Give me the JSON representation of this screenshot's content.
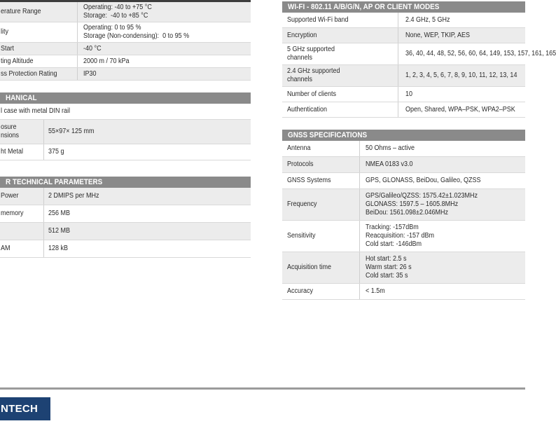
{
  "footer": {
    "logo_text": "NTECH"
  },
  "colors": {
    "logo_bg": "#1d4273",
    "header_bar": "#8a8a8a",
    "row_alt": "#ececec",
    "rule": "#9b9b9b"
  },
  "tables": {
    "environmental": {
      "header": "",
      "rows": [
        {
          "label": "erature Range",
          "value": "Operating: -40 to +75 °C\nStorage:  -40 to +85 °C",
          "shade": "gray"
        },
        {
          "label": "lity",
          "value": "Operating: 0 to 95 %\nStorage (Non-condensing):  0 to 95 %",
          "shade": "white"
        },
        {
          "label": "Start",
          "value": "-40 °C",
          "shade": "gray"
        },
        {
          "label": "ting Altitude",
          "value": "2000 m / 70 kPa",
          "shade": "white"
        },
        {
          "label": "ss Protection Rating",
          "value": "IP30",
          "shade": "gray"
        }
      ]
    },
    "mechanical": {
      "header": "HANICAL",
      "rows": [
        {
          "label": "",
          "value": "l case with metal DIN rail",
          "shade": "white",
          "full": true
        },
        {
          "label": "osure\nnsions",
          "value": "55×97× 125 mm",
          "shade": "gray"
        },
        {
          "label": "ht Metal",
          "value": "375 g",
          "shade": "white"
        }
      ]
    },
    "other_technical": {
      "header": "R TECHNICAL PARAMETERS",
      "rows": [
        {
          "label": "Power",
          "value": "2 DMIPS per MHz",
          "shade": "gray"
        },
        {
          "label": "memory",
          "value": "256 MB",
          "shade": "white"
        },
        {
          "label": "",
          "value": "512 MB",
          "shade": "gray"
        },
        {
          "label": "AM",
          "value": "128 kB",
          "shade": "white"
        }
      ]
    },
    "wifi": {
      "header": "WI-FI - 802.11 A/B/G/N, AP OR CLIENT MODES",
      "rows": [
        {
          "label": "Supported Wi-Fi band",
          "value": "2.4 GHz, 5 GHz",
          "shade": "white"
        },
        {
          "label": "Encryption",
          "value": "None, WEP, TKIP, AES",
          "shade": "gray"
        },
        {
          "label": "5 GHz supported\nchannels",
          "value": "36, 40, 44, 48, 52, 56, 60, 64, 149, 153, 157, 161, 165",
          "shade": "white"
        },
        {
          "label": "2.4 GHz supported\nchannels",
          "value": "1, 2, 3, 4, 5, 6, 7, 8, 9, 10, 11, 12, 13, 14",
          "shade": "gray"
        },
        {
          "label": "Number of clients",
          "value": "10",
          "shade": "white"
        },
        {
          "label": "Authentication",
          "value": "Open, Shared, WPA–PSK, WPA2–PSK",
          "shade": "white"
        }
      ]
    },
    "gnss": {
      "header": "GNSS SPECIFICATIONS",
      "rows": [
        {
          "label": "Antenna",
          "value": "50 Ohms – active",
          "shade": "white"
        },
        {
          "label": "Protocols",
          "value": "NMEA 0183 v3.0",
          "shade": "gray"
        },
        {
          "label": "GNSS Systems",
          "value": "GPS, GLONASS, BeiDou, Galileo, QZSS",
          "shade": "white"
        },
        {
          "label": "Frequency",
          "value": "GPS/Galileo/QZSS: 1575.42±1.023MHz\nGLONASS: 1597.5 – 1605.8MHz\nBeiDou: 1561.098±2.046MHz",
          "shade": "gray"
        },
        {
          "label": "Sensitivity",
          "value": "Tracking: -157dBm\nReacquisition: -157 dBm\nCold start: -146dBm",
          "shade": "white"
        },
        {
          "label": "Acquisition time",
          "value": "Hot start: 2.5 s\nWarm start: 26 s\nCold start: 35 s",
          "shade": "gray"
        },
        {
          "label": "Accuracy",
          "value": "< 1.5m",
          "shade": "white"
        }
      ]
    }
  }
}
